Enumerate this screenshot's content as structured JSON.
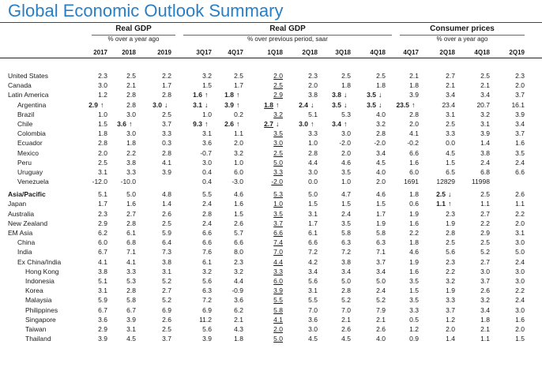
{
  "title": "Global Economic Outlook Summary",
  "groups": [
    {
      "title": "Real GDP",
      "subtitle": "% over a year ago"
    },
    {
      "title": "Real GDP",
      "subtitle": "% over previous period, saar"
    },
    {
      "title": "Consumer prices",
      "subtitle": "% over a year ago"
    }
  ],
  "columns": [
    "2017",
    "2018",
    "2019",
    "3Q17",
    "4Q17",
    "1Q18",
    "2Q18",
    "3Q18",
    "4Q18",
    "4Q17",
    "2Q18",
    "4Q18",
    "2Q19"
  ],
  "rows": [
    {
      "label": "United States",
      "indent": 0,
      "values": [
        "2.3",
        "2.5",
        "2.2",
        "3.2",
        "2.5",
        "2.0",
        "2.3",
        "2.5",
        "2.5",
        "2.1",
        "2.7",
        "2.5",
        "2.3"
      ]
    },
    {
      "label": "Canada",
      "indent": 0,
      "values": [
        "3.0",
        "2.1",
        "1.7",
        "1.5",
        "1.7",
        "2.5",
        "2.0",
        "1.8",
        "1.8",
        "1.8",
        "2.1",
        "2.1",
        "2.0"
      ]
    },
    {
      "label": "Latin America",
      "indent": 0,
      "values": [
        "1.2",
        "2.8",
        "2.8",
        "1.6",
        "1.8",
        "2.9",
        "3.8",
        "3.8",
        "3.5",
        "3.9",
        "3.4",
        "3.4",
        "3.7"
      ],
      "bold": [
        3,
        4,
        7,
        8
      ],
      "arrows": {
        "3": "↑",
        "4": "↑",
        "7": "↓",
        "8": "↓"
      }
    },
    {
      "label": "Argentina",
      "indent": 1,
      "values": [
        "2.9",
        "2.8",
        "3.0",
        "3.1",
        "3.9",
        "1.8",
        "2.4",
        "3.5",
        "3.5",
        "23.5",
        "23.4",
        "20.7",
        "16.1"
      ],
      "bold": [
        0,
        2,
        3,
        4,
        5,
        6,
        7,
        8,
        9
      ],
      "arrows": {
        "0": "↑",
        "2": "↓",
        "3": "↓",
        "4": "↑",
        "5": "↑",
        "6": "↓",
        "7": "↓",
        "8": "↓",
        "9": "↑"
      }
    },
    {
      "label": "Brazil",
      "indent": 1,
      "values": [
        "1.0",
        "3.0",
        "2.5",
        "1.0",
        "0.2",
        "3.2",
        "5.1",
        "5.3",
        "4.0",
        "2.8",
        "3.1",
        "3.2",
        "3.9"
      ]
    },
    {
      "label": "Chile",
      "indent": 1,
      "values": [
        "1.5",
        "3.6",
        "3.7",
        "9.3",
        "2.6",
        "2.7",
        "3.0",
        "3.4",
        "3.2",
        "2.0",
        "2.5",
        "3.1",
        "3.4"
      ],
      "bold": [
        1,
        3,
        4,
        5,
        6,
        7
      ],
      "arrows": {
        "1": "↑",
        "3": "↑",
        "4": "↑",
        "5": "↓",
        "6": "↑",
        "7": "↑"
      }
    },
    {
      "label": "Colombia",
      "indent": 1,
      "values": [
        "1.8",
        "3.0",
        "3.3",
        "3.1",
        "1.1",
        "3.5",
        "3.3",
        "3.0",
        "2.8",
        "4.1",
        "3.3",
        "3.9",
        "3.7"
      ]
    },
    {
      "label": "Ecuador",
      "indent": 1,
      "values": [
        "2.8",
        "1.8",
        "0.3",
        "3.6",
        "2.0",
        "3.0",
        "1.0",
        "-2.0",
        "-2.0",
        "-0.2",
        "0.0",
        "1.4",
        "1.6"
      ]
    },
    {
      "label": "Mexico",
      "indent": 1,
      "values": [
        "2.0",
        "2.2",
        "2.8",
        "-0.7",
        "3.2",
        "2.5",
        "2.8",
        "2.0",
        "3.4",
        "6.6",
        "4.5",
        "3.8",
        "3.5"
      ]
    },
    {
      "label": "Peru",
      "indent": 1,
      "values": [
        "2.5",
        "3.8",
        "4.1",
        "3.0",
        "1.0",
        "5.0",
        "4.4",
        "4.6",
        "4.5",
        "1.6",
        "1.5",
        "2.4",
        "2.4"
      ]
    },
    {
      "label": "Uruguay",
      "indent": 1,
      "values": [
        "3.1",
        "3.3",
        "3.9",
        "0.4",
        "6.0",
        "3.3",
        "3.0",
        "3.5",
        "4.0",
        "6.0",
        "6.5",
        "6.8",
        "6.6"
      ]
    },
    {
      "label": "Venezuela",
      "indent": 1,
      "values": [
        "-12.0",
        "-10.0",
        "",
        "0.4",
        "-3.0",
        "-2.0",
        "0.0",
        "1.0",
        "2.0",
        "1691",
        "12829",
        "11998",
        ""
      ]
    },
    {
      "label": "Asia/Pacific",
      "indent": 0,
      "bold_label": true,
      "gap": true,
      "values": [
        "5.1",
        "5.0",
        "4.8",
        "5.5",
        "4.6",
        "5.3",
        "5.0",
        "4.7",
        "4.6",
        "1.8",
        "2.5",
        "2.5",
        "2.6"
      ],
      "bold": [
        10
      ],
      "arrows": {
        "10": "↓"
      }
    },
    {
      "label": "Japan",
      "indent": 0,
      "values": [
        "1.7",
        "1.6",
        "1.4",
        "2.4",
        "1.6",
        "1.0",
        "1.5",
        "1.5",
        "1.5",
        "0.6",
        "1.1",
        "1.1",
        "1.1"
      ],
      "bold": [
        10
      ],
      "arrows": {
        "10": "↑"
      }
    },
    {
      "label": "Australia",
      "indent": 0,
      "values": [
        "2.3",
        "2.7",
        "2.6",
        "2.8",
        "1.5",
        "3.5",
        "3.1",
        "2.4",
        "1.7",
        "1.9",
        "2.3",
        "2.7",
        "2.2"
      ]
    },
    {
      "label": "New Zealand",
      "indent": 0,
      "values": [
        "2.9",
        "2.8",
        "2.5",
        "2.4",
        "2.6",
        "3.7",
        "1.7",
        "3.5",
        "1.9",
        "1.6",
        "1.9",
        "2.2",
        "2.0"
      ]
    },
    {
      "label": "EM Asia",
      "indent": 0,
      "values": [
        "6.2",
        "6.1",
        "5.9",
        "6.6",
        "5.7",
        "6.6",
        "6.1",
        "5.8",
        "5.8",
        "2.2",
        "2.8",
        "2.9",
        "3.1"
      ]
    },
    {
      "label": "China",
      "indent": 1,
      "values": [
        "6.0",
        "6.8",
        "6.4",
        "6.6",
        "6.6",
        "7.4",
        "6.6",
        "6.3",
        "6.3",
        "1.8",
        "2.5",
        "2.5",
        "3.0"
      ]
    },
    {
      "label": "India",
      "indent": 1,
      "values": [
        "6.7",
        "7.1",
        "7.3",
        "7.6",
        "8.0",
        "7.0",
        "7.2",
        "7.2",
        "7.1",
        "4.6",
        "5.6",
        "5.2",
        "5.0"
      ]
    },
    {
      "label": "Ex China/India",
      "indent": 1,
      "values": [
        "4.1",
        "4.1",
        "3.8",
        "6.1",
        "2.3",
        "4.4",
        "4.2",
        "3.8",
        "3.7",
        "1.9",
        "2.3",
        "2.7",
        "2.4"
      ]
    },
    {
      "label": "Hong Kong",
      "indent": 2,
      "values": [
        "3.8",
        "3.3",
        "3.1",
        "3.2",
        "3.2",
        "3.3",
        "3.4",
        "3.4",
        "3.4",
        "1.6",
        "2.2",
        "3.0",
        "3.0"
      ]
    },
    {
      "label": "Indonesia",
      "indent": 2,
      "values": [
        "5.1",
        "5.3",
        "5.2",
        "5.6",
        "4.4",
        "6.0",
        "5.6",
        "5.0",
        "5.0",
        "3.5",
        "3.2",
        "3.7",
        "3.0"
      ]
    },
    {
      "label": "Korea",
      "indent": 2,
      "values": [
        "3.1",
        "2.8",
        "2.7",
        "6.3",
        "-0.9",
        "3.9",
        "3.1",
        "2.8",
        "2.4",
        "1.5",
        "1.9",
        "2.6",
        "2.2"
      ]
    },
    {
      "label": "Malaysia",
      "indent": 2,
      "values": [
        "5.9",
        "5.8",
        "5.2",
        "7.2",
        "3.6",
        "5.5",
        "5.5",
        "5.2",
        "5.2",
        "3.5",
        "3.3",
        "3.2",
        "2.4"
      ]
    },
    {
      "label": "Philippines",
      "indent": 2,
      "values": [
        "6.7",
        "6.7",
        "6.9",
        "6.9",
        "6.2",
        "5.8",
        "7.0",
        "7.0",
        "7.9",
        "3.3",
        "3.7",
        "3.4",
        "3.0"
      ]
    },
    {
      "label": "Singapore",
      "indent": 2,
      "values": [
        "3.6",
        "3.9",
        "2.6",
        "11.2",
        "2.1",
        "4.1",
        "3.6",
        "2.1",
        "2.1",
        "0.5",
        "1.2",
        "1.8",
        "1.6"
      ]
    },
    {
      "label": "Taiwan",
      "indent": 2,
      "values": [
        "2.9",
        "3.1",
        "2.5",
        "5.6",
        "4.3",
        "2.0",
        "3.0",
        "2.6",
        "2.6",
        "1.2",
        "2.0",
        "2.1",
        "2.0"
      ]
    },
    {
      "label": "Thailand",
      "indent": 2,
      "values": [
        "3.9",
        "4.5",
        "3.7",
        "3.9",
        "1.8",
        "5.0",
        "4.5",
        "4.5",
        "4.0",
        "0.9",
        "1.4",
        "1.1",
        "1.5"
      ]
    }
  ]
}
